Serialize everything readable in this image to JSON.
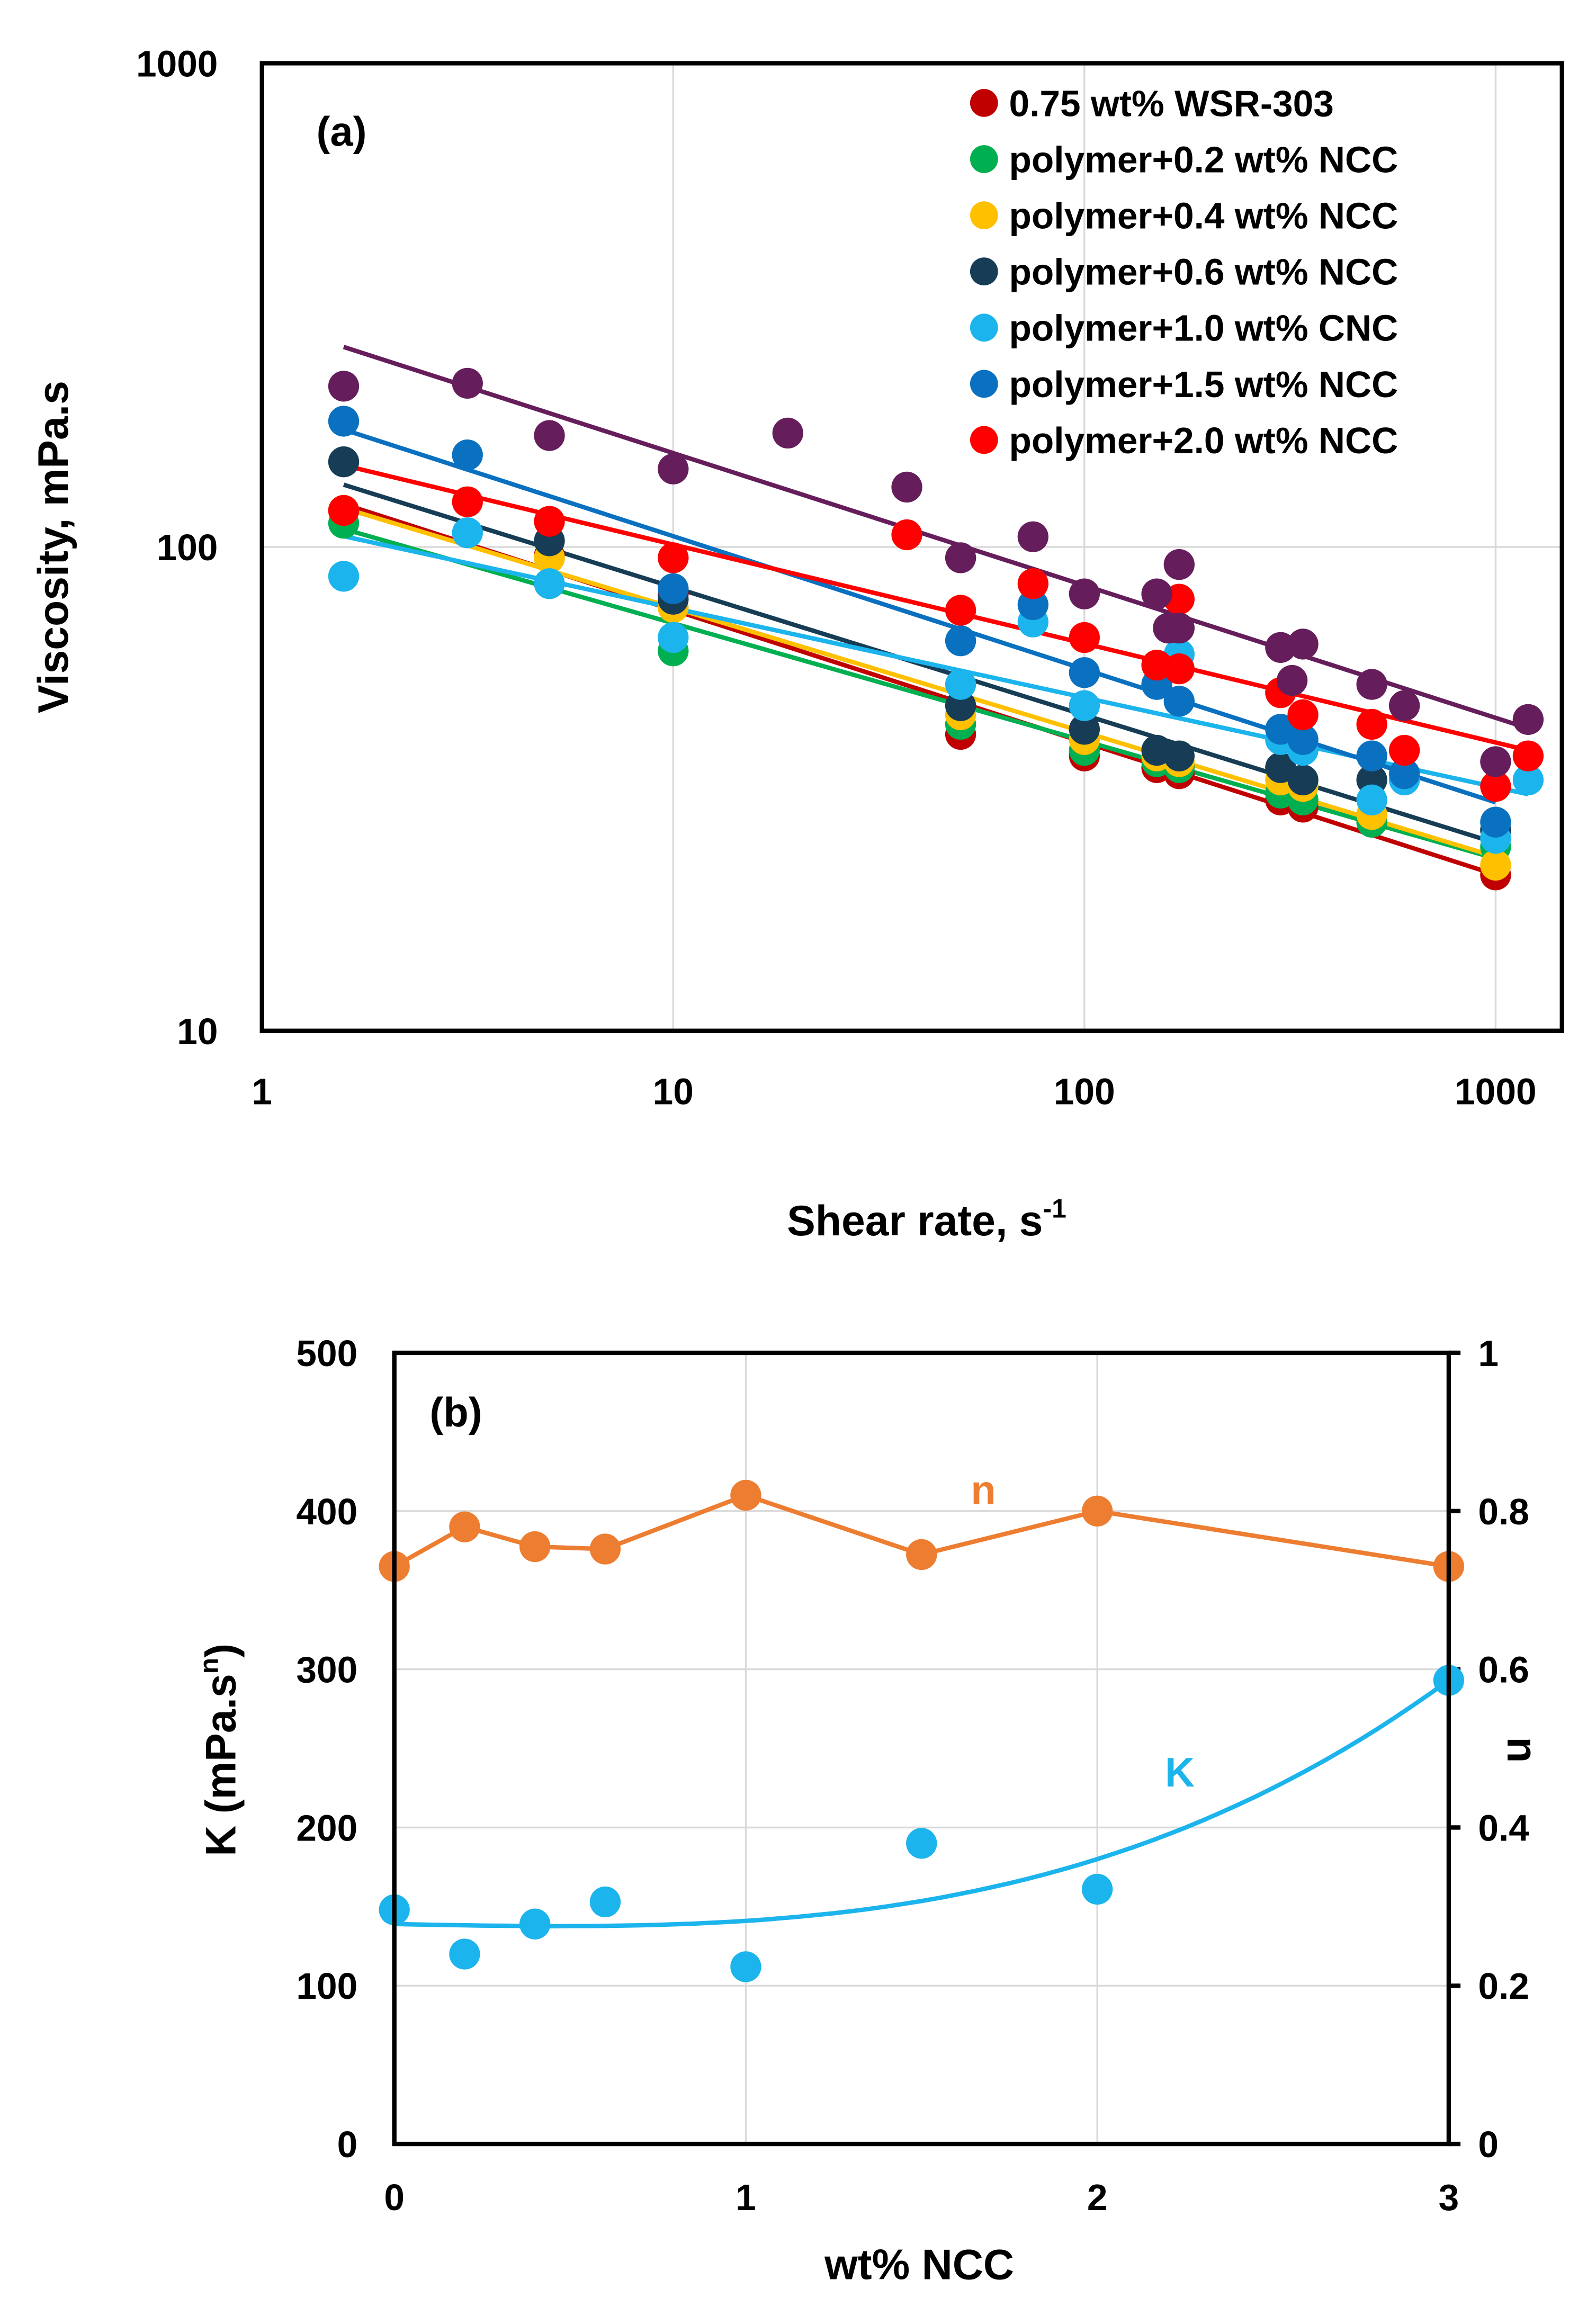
{
  "chart_data": [
    {
      "type": "scatter",
      "panel_label": "(a)",
      "xlabel": "Shear rate, s",
      "xlabel_superscript": "-1",
      "ylabel": "Viscosity, mPa.s",
      "xscale": "log",
      "yscale": "log",
      "xlim": [
        1,
        1450
      ],
      "ylim": [
        10,
        1000
      ],
      "x_ticks": [
        "1",
        "10",
        "100",
        "1000"
      ],
      "y_ticks": [
        "10",
        "100",
        "1000"
      ],
      "grid": true,
      "legend_position": "top-right",
      "trendline": "power",
      "series": [
        {
          "name": "0.75 wt% WSR-303",
          "color": "#C00000",
          "x": [
            1.58,
            5,
            10,
            50,
            100,
            150,
            170,
            300,
            340,
            500,
            1000
          ],
          "y": [
            119,
            96,
            80,
            41,
            37,
            35,
            34,
            30,
            29,
            27,
            21
          ]
        },
        {
          "name": "polymer+0.2 wt% NCC",
          "color": "#00B050",
          "x": [
            1.58,
            5,
            10,
            50,
            100,
            150,
            170,
            300,
            340,
            500,
            1000
          ],
          "y": [
            112,
            95,
            61,
            43,
            38,
            36,
            35,
            31,
            30,
            27,
            24
          ]
        },
        {
          "name": "polymer+0.4 wt% NCC",
          "color": "#FFC000",
          "x": [
            1.58,
            5,
            10,
            50,
            100,
            150,
            170,
            300,
            340,
            500,
            1000
          ],
          "y": [
            119,
            95,
            75,
            45,
            40,
            37,
            36,
            33,
            32,
            28,
            22
          ]
        },
        {
          "name": "polymer+0.6 wt% NCC",
          "color": "#163D55",
          "x": [
            1.58,
            5,
            10,
            50,
            100,
            150,
            170,
            300,
            340,
            500,
            1000
          ],
          "y": [
            150,
            103,
            78,
            47,
            42,
            38,
            37,
            35,
            33,
            33,
            26
          ]
        },
        {
          "name": "polymer+1.0 wt% CNC",
          "color": "#1CB4EC",
          "x": [
            1.58,
            3.16,
            5,
            10,
            50,
            75,
            100,
            150,
            170,
            300,
            340,
            500,
            600,
            1000,
            1200
          ],
          "y": [
            87,
            107,
            84,
            65,
            52,
            70,
            47,
            52,
            60,
            40,
            38,
            30,
            33,
            25,
            33
          ]
        },
        {
          "name": "polymer+1.5 wt% NCC",
          "color": "#0A70C0",
          "x": [
            1.58,
            3.16,
            10,
            50,
            75,
            100,
            150,
            170,
            300,
            340,
            500,
            600,
            1000
          ],
          "y": [
            182,
            155,
            82,
            64,
            76,
            55,
            52,
            48,
            42,
            40,
            37,
            34,
            27
          ]
        },
        {
          "name": "polymer+2.0 wt% NCC",
          "color": "#FF0000",
          "x": [
            1.58,
            3.16,
            5,
            10,
            37,
            50,
            75,
            100,
            150,
            170,
            170,
            300,
            340,
            500,
            600,
            1000,
            1200
          ],
          "y": [
            119,
            124,
            113,
            95,
            106,
            74,
            84,
            65,
            57,
            78,
            56,
            50,
            45,
            43,
            38,
            32,
            37
          ]
        },
        {
          "color": "#651E5B",
          "x": [
            1.58,
            3.16,
            5,
            10,
            19,
            37,
            50,
            75,
            100,
            150,
            160,
            170,
            170,
            300,
            320,
            340,
            500,
            600,
            1000,
            1200
          ],
          "y": [
            215,
            218,
            170,
            145,
            172,
            133,
            95,
            105,
            80,
            80,
            68,
            92,
            68,
            62,
            53,
            63,
            52,
            47,
            36,
            44
          ]
        }
      ]
    },
    {
      "type": "line",
      "panel_label": "(b)",
      "xlabel": "wt% NCC",
      "ylabel_left": "K (mPa.s",
      "ylabel_left_superscript": "n",
      "ylabel_left_close": ")",
      "ylabel_right": "n",
      "xlim": [
        0,
        3
      ],
      "ylim_left": [
        0,
        500
      ],
      "ylim_right": [
        0,
        1
      ],
      "x_ticks": [
        "0",
        "1",
        "2",
        "3"
      ],
      "y_ticks_left": [
        "0",
        "100",
        "200",
        "300",
        "400",
        "500"
      ],
      "y_ticks_right": [
        "0",
        "0.2",
        "0.4",
        "0.6",
        "0.8",
        "1"
      ],
      "grid": true,
      "x": [
        0,
        0.2,
        0.4,
        0.6,
        1,
        1.5,
        2,
        3
      ],
      "series": [
        {
          "name": "n",
          "axis": "right",
          "color": "#ED7D31",
          "style": "line+markers",
          "values": [
            0.73,
            0.78,
            0.755,
            0.752,
            0.82,
            0.745,
            0.8,
            0.73
          ]
        },
        {
          "name": "K",
          "axis": "left",
          "color": "#1CB4EC",
          "style": "markers+polynomial trendline",
          "values": [
            148,
            120,
            139,
            153,
            112,
            190,
            161,
            293
          ]
        }
      ]
    }
  ]
}
